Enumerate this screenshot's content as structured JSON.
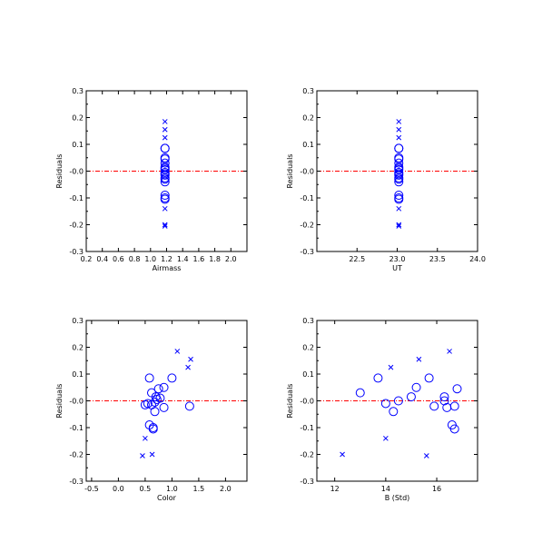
{
  "colors": {
    "points": "#0000ff",
    "zero_line": "#ff0000",
    "axes": "#000000"
  },
  "chart_data": [
    {
      "type": "scatter",
      "xlabel": "Airmass",
      "ylabel": "Residuals",
      "xlim": [
        0.2,
        2.2
      ],
      "ylim": [
        -0.3,
        0.3
      ],
      "xticks": [
        0.2,
        0.4,
        0.6,
        0.8,
        1.0,
        1.2,
        1.4,
        1.6,
        1.8,
        2.0
      ],
      "xtick_labels": [
        "0.2",
        "0.4",
        "0.6",
        "0.8",
        "1.0",
        "1.2",
        "1.4",
        "1.6",
        "1.8",
        "2.0"
      ],
      "yticks": [
        -0.3,
        -0.2,
        -0.1,
        0.0,
        0.1,
        0.2,
        0.3
      ],
      "ytick_labels": [
        "-0.3",
        "-0.2",
        "-0.1",
        "-0.0",
        "0.1",
        "0.2",
        "0.3"
      ],
      "zero_line": true,
      "series": [
        {
          "marker": "circle",
          "points": [
            [
              1.18,
              0.085
            ],
            [
              1.18,
              0.085
            ],
            [
              1.18,
              0.05
            ],
            [
              1.18,
              0.045
            ],
            [
              1.18,
              0.03
            ],
            [
              1.18,
              0.015
            ],
            [
              1.18,
              0.01
            ],
            [
              1.18,
              0.005
            ],
            [
              1.18,
              -0.005
            ],
            [
              1.18,
              -0.01
            ],
            [
              1.18,
              -0.015
            ],
            [
              1.18,
              -0.025
            ],
            [
              1.18,
              -0.03
            ],
            [
              1.18,
              -0.04
            ],
            [
              1.18,
              -0.09
            ],
            [
              1.18,
              -0.1
            ],
            [
              1.18,
              -0.105
            ]
          ]
        },
        {
          "marker": "cross",
          "points": [
            [
              1.18,
              0.185
            ],
            [
              1.18,
              0.155
            ],
            [
              1.18,
              0.125
            ],
            [
              1.18,
              -0.14
            ],
            [
              1.18,
              -0.2
            ],
            [
              1.18,
              -0.205
            ]
          ]
        }
      ]
    },
    {
      "type": "scatter",
      "xlabel": "UT",
      "ylabel": "Residuals",
      "xlim": [
        22.0,
        24.0
      ],
      "ylim": [
        -0.3,
        0.3
      ],
      "xticks": [
        22.5,
        23.0,
        23.5,
        24.0
      ],
      "xtick_labels": [
        "22.5",
        "23.0",
        "23.5",
        "24.0"
      ],
      "yticks": [
        -0.3,
        -0.2,
        -0.1,
        0.0,
        0.1,
        0.2,
        0.3
      ],
      "ytick_labels": [
        "-0.3",
        "-0.2",
        "-0.1",
        "-0.0",
        "0.1",
        "0.2",
        "0.3"
      ],
      "zero_line": true,
      "series": [
        {
          "marker": "circle",
          "points": [
            [
              23.02,
              0.085
            ],
            [
              23.02,
              0.085
            ],
            [
              23.02,
              0.05
            ],
            [
              23.02,
              0.045
            ],
            [
              23.02,
              0.03
            ],
            [
              23.02,
              0.015
            ],
            [
              23.02,
              0.01
            ],
            [
              23.02,
              0.005
            ],
            [
              23.02,
              -0.005
            ],
            [
              23.02,
              -0.01
            ],
            [
              23.02,
              -0.015
            ],
            [
              23.02,
              -0.025
            ],
            [
              23.02,
              -0.03
            ],
            [
              23.02,
              -0.04
            ],
            [
              23.02,
              -0.09
            ],
            [
              23.02,
              -0.1
            ],
            [
              23.02,
              -0.105
            ]
          ]
        },
        {
          "marker": "cross",
          "points": [
            [
              23.02,
              0.185
            ],
            [
              23.02,
              0.155
            ],
            [
              23.02,
              0.125
            ],
            [
              23.02,
              -0.14
            ],
            [
              23.02,
              -0.2
            ],
            [
              23.02,
              -0.205
            ]
          ]
        }
      ]
    },
    {
      "type": "scatter",
      "xlabel": "Color",
      "ylabel": "Residuals",
      "xlim": [
        -0.6,
        2.4
      ],
      "ylim": [
        -0.3,
        0.3
      ],
      "xticks": [
        -0.5,
        0.0,
        0.5,
        1.0,
        1.5,
        2.0
      ],
      "xtick_labels": [
        "-0.5",
        "0.0",
        "0.5",
        "1.0",
        "1.5",
        "2.0"
      ],
      "yticks": [
        -0.3,
        -0.2,
        -0.1,
        0.0,
        0.1,
        0.2,
        0.3
      ],
      "ytick_labels": [
        "-0.3",
        "-0.2",
        "-0.1",
        "-0.0",
        "0.1",
        "0.2",
        "0.3"
      ],
      "zero_line": true,
      "series": [
        {
          "marker": "circle",
          "points": [
            [
              0.58,
              0.085
            ],
            [
              1.0,
              0.085
            ],
            [
              0.85,
              0.05
            ],
            [
              0.75,
              0.045
            ],
            [
              0.62,
              0.03
            ],
            [
              0.7,
              0.015
            ],
            [
              0.78,
              0.01
            ],
            [
              0.72,
              0.005
            ],
            [
              0.68,
              -0.005
            ],
            [
              0.55,
              -0.01
            ],
            [
              0.62,
              -0.015
            ],
            [
              0.5,
              -0.015
            ],
            [
              1.33,
              -0.02
            ],
            [
              0.85,
              -0.025
            ],
            [
              0.68,
              -0.04
            ],
            [
              0.58,
              -0.09
            ],
            [
              0.65,
              -0.1
            ],
            [
              0.65,
              -0.105
            ]
          ]
        },
        {
          "marker": "cross",
          "points": [
            [
              1.1,
              0.185
            ],
            [
              1.35,
              0.155
            ],
            [
              1.3,
              0.125
            ],
            [
              0.5,
              -0.14
            ],
            [
              0.63,
              -0.2
            ],
            [
              0.45,
              -0.205
            ]
          ]
        }
      ]
    },
    {
      "type": "scatter",
      "xlabel": "B (Std)",
      "ylabel": "Residuals",
      "xlim": [
        11.3,
        17.6
      ],
      "ylim": [
        -0.3,
        0.3
      ],
      "xticks": [
        12,
        14,
        16
      ],
      "xtick_labels": [
        "12",
        "14",
        "16"
      ],
      "yticks": [
        -0.3,
        -0.2,
        -0.1,
        0.0,
        0.1,
        0.2,
        0.3
      ],
      "ytick_labels": [
        "-0.3",
        "-0.2",
        "-0.1",
        "-0.0",
        "0.1",
        "0.2",
        "0.3"
      ],
      "zero_line": true,
      "series": [
        {
          "marker": "circle",
          "points": [
            [
              13.7,
              0.085
            ],
            [
              15.7,
              0.085
            ],
            [
              15.2,
              0.05
            ],
            [
              16.8,
              0.045
            ],
            [
              13.0,
              0.03
            ],
            [
              15.0,
              0.015
            ],
            [
              16.3,
              0.015
            ],
            [
              14.5,
              0.0
            ],
            [
              16.3,
              0.0
            ],
            [
              14.0,
              -0.01
            ],
            [
              15.9,
              -0.02
            ],
            [
              16.7,
              -0.02
            ],
            [
              16.4,
              -0.025
            ],
            [
              14.3,
              -0.04
            ],
            [
              16.6,
              -0.09
            ],
            [
              16.7,
              -0.105
            ]
          ]
        },
        {
          "marker": "cross",
          "points": [
            [
              16.5,
              0.185
            ],
            [
              15.3,
              0.155
            ],
            [
              14.2,
              0.125
            ],
            [
              14.0,
              -0.14
            ],
            [
              12.3,
              -0.2
            ],
            [
              15.6,
              -0.205
            ]
          ]
        }
      ]
    }
  ]
}
